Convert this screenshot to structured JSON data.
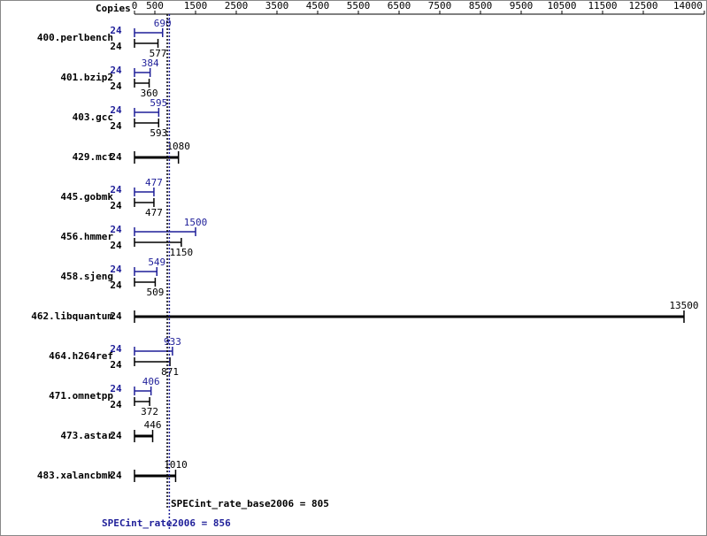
{
  "chart_data": {
    "type": "bar",
    "copies_header": "Copies",
    "categories": [
      "400.perlbench",
      "401.bzip2",
      "403.gcc",
      "429.mcf",
      "445.gobmk",
      "456.hmmer",
      "458.sjeng",
      "462.libquantum",
      "464.h264ref",
      "471.omnetpp",
      "473.astar",
      "483.xalancbmk"
    ],
    "series": [
      {
        "color": "#1f1f99",
        "values": [
          690,
          384,
          595,
          null,
          477,
          1500,
          549,
          null,
          933,
          406,
          null,
          null
        ],
        "copies": [
          24,
          24,
          24,
          null,
          24,
          24,
          24,
          null,
          24,
          24,
          null,
          null
        ]
      },
      {
        "color": "#000000",
        "values": [
          577,
          360,
          593,
          1080,
          477,
          1150,
          509,
          13500,
          871,
          372,
          446,
          1010
        ],
        "copies": [
          24,
          24,
          24,
          24,
          24,
          24,
          24,
          24,
          24,
          24,
          24,
          24
        ]
      }
    ],
    "xlim": [
      0,
      14000
    ],
    "xticks": [
      0,
      500,
      1500,
      2500,
      3500,
      4500,
      5500,
      6500,
      7500,
      8500,
      9500,
      10500,
      11500,
      12500,
      14000
    ],
    "reference_lines": [
      {
        "text": "SPECint_rate_base2006 = 805",
        "value": 805,
        "color": "#000000"
      },
      {
        "text": "SPECint_rate2006 = 856",
        "value": 856,
        "color": "#1f1f99"
      }
    ]
  }
}
